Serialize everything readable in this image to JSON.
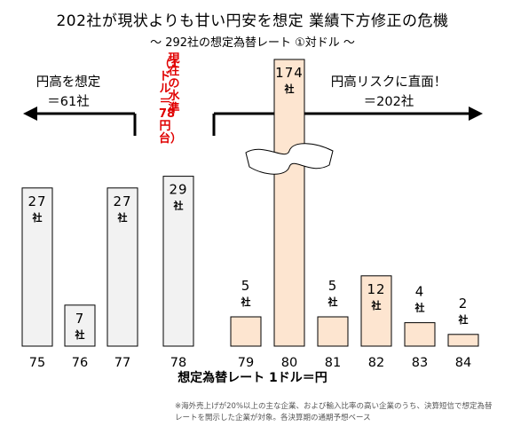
{
  "title": "202社が現状よりも甘い円安を想定  業績下方修正の危機",
  "subtitle": "～ 292社の想定為替レート ①対ドル ～",
  "left_group": {
    "line1": "円高を想定",
    "line2": "＝61社"
  },
  "right_group": {
    "line1": "円高リスクに直面！",
    "line2": "＝202社"
  },
  "current_level": {
    "main": "現在の水準",
    "sub": "（1ドル＝78円台）"
  },
  "footnote": "※海外売上げが20%以上の主な企業、および輸入比率の高い企業のうち、決算短信で想定為替レートを開示した企業が対象。各決算期の通期予想ベース",
  "colors": {
    "gray_bar": "#f2f2f2",
    "peach_bar": "#fde5d0",
    "red_text": "#e00000"
  },
  "chart_data": {
    "type": "bar",
    "title": "202社が現状よりも甘い円安を想定  業績下方修正の危機",
    "subtitle": "～ 292社の想定為替レート ①対ドル ～",
    "xlabel": "想定為替レート 1ドル＝円",
    "ylabel": "",
    "categories": [
      "75",
      "76",
      "77",
      "78",
      "79",
      "80",
      "81",
      "82",
      "83",
      "84"
    ],
    "values": [
      27,
      7,
      27,
      29,
      5,
      174,
      5,
      12,
      4,
      2
    ],
    "value_labels": [
      "27社",
      "7社",
      "27社",
      "29社",
      "5社",
      "174社",
      "5社",
      "12社",
      "4社",
      "2社"
    ],
    "unit": "社",
    "axis_break_on": "80",
    "grid": false,
    "legend": "none"
  }
}
